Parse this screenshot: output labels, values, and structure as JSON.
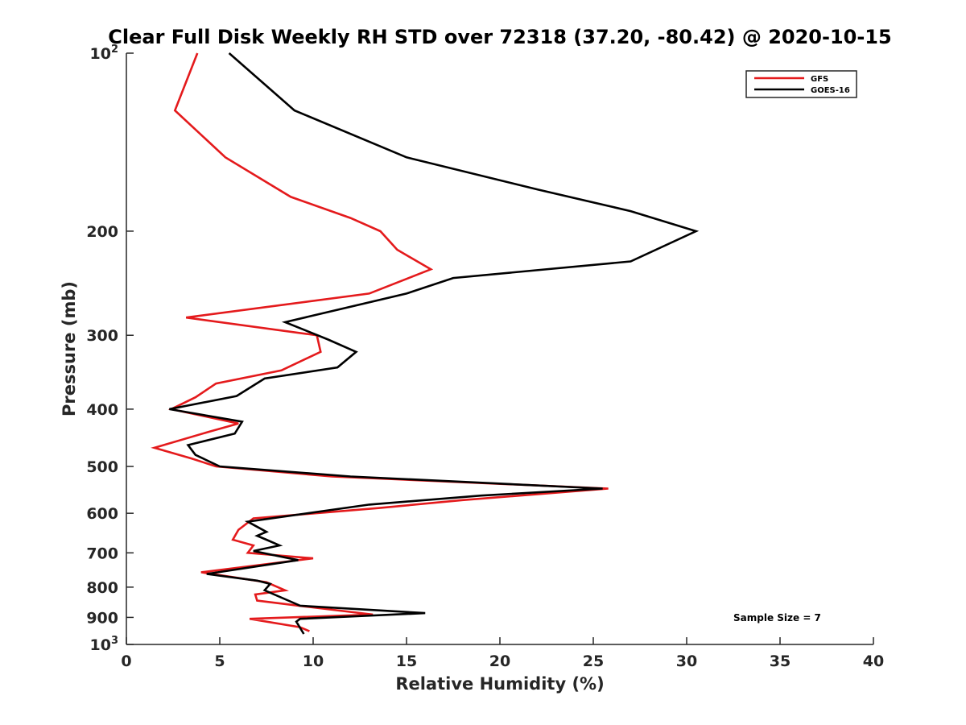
{
  "chart_data": {
    "type": "line",
    "title": "Clear Full Disk Weekly RH STD over 72318 (37.20, -80.42) @ 2020-10-15",
    "xlabel": "Relative Humidity (%)",
    "ylabel": "Pressure (mb)",
    "xlim": [
      0,
      40
    ],
    "ylim": [
      100,
      1000
    ],
    "y_scale": "log",
    "y_reversed": true,
    "grid": false,
    "legend_position": "top-right",
    "annotation": "Sample Size = 7",
    "x_ticks": [
      "0",
      "5",
      "10",
      "15",
      "20",
      "25",
      "30",
      "35",
      "40"
    ],
    "y_ticks": [
      {
        "value": 100,
        "base": "10",
        "sup": "2"
      },
      {
        "value": 200,
        "base": "200",
        "sup": ""
      },
      {
        "value": 300,
        "base": "300",
        "sup": ""
      },
      {
        "value": 400,
        "base": "400",
        "sup": ""
      },
      {
        "value": 500,
        "base": "500",
        "sup": ""
      },
      {
        "value": 600,
        "base": "600",
        "sup": ""
      },
      {
        "value": 700,
        "base": "700",
        "sup": ""
      },
      {
        "value": 800,
        "base": "800",
        "sup": ""
      },
      {
        "value": 900,
        "base": "900",
        "sup": ""
      },
      {
        "value": 1000,
        "base": "10",
        "sup": "3"
      }
    ],
    "series": [
      {
        "name": "GFS",
        "color": "#e41a1c",
        "points": [
          [
            3.8,
            100
          ],
          [
            2.6,
            125
          ],
          [
            5.3,
            150
          ],
          [
            8.8,
            175
          ],
          [
            12.0,
            190
          ],
          [
            13.6,
            200
          ],
          [
            14.5,
            215
          ],
          [
            16.3,
            232
          ],
          [
            13.0,
            255
          ],
          [
            3.2,
            280
          ],
          [
            10.2,
            300
          ],
          [
            10.4,
            320
          ],
          [
            8.3,
            344
          ],
          [
            4.8,
            362
          ],
          [
            3.7,
            382
          ],
          [
            2.4,
            400
          ],
          [
            6.0,
            423
          ],
          [
            4.4,
            437
          ],
          [
            1.5,
            465
          ],
          [
            3.5,
            485
          ],
          [
            4.8,
            500
          ],
          [
            11.0,
            520
          ],
          [
            25.8,
            545
          ],
          [
            18.0,
            570
          ],
          [
            13.5,
            588
          ],
          [
            6.8,
            612
          ],
          [
            6.0,
            640
          ],
          [
            5.7,
            665
          ],
          [
            6.8,
            680
          ],
          [
            6.5,
            700
          ],
          [
            10.0,
            715
          ],
          [
            4.0,
            755
          ],
          [
            7.5,
            785
          ],
          [
            8.5,
            810
          ],
          [
            6.9,
            823
          ],
          [
            7.0,
            843
          ],
          [
            9.5,
            862
          ],
          [
            13.2,
            890
          ],
          [
            6.6,
            905
          ],
          [
            9.3,
            935
          ],
          [
            9.8,
            950
          ]
        ]
      },
      {
        "name": "GOES-16",
        "color": "#000000",
        "points": [
          [
            5.5,
            100
          ],
          [
            9.0,
            125
          ],
          [
            15.0,
            150
          ],
          [
            22.0,
            170
          ],
          [
            27.0,
            185
          ],
          [
            30.5,
            200
          ],
          [
            27.0,
            225
          ],
          [
            17.5,
            240
          ],
          [
            15.0,
            255
          ],
          [
            8.5,
            285
          ],
          [
            10.8,
            305
          ],
          [
            12.3,
            320
          ],
          [
            11.3,
            340
          ],
          [
            7.4,
            355
          ],
          [
            5.9,
            380
          ],
          [
            2.3,
            400
          ],
          [
            6.2,
            420
          ],
          [
            5.8,
            440
          ],
          [
            3.3,
            460
          ],
          [
            3.7,
            478
          ],
          [
            5.0,
            500
          ],
          [
            12.0,
            520
          ],
          [
            25.5,
            545
          ],
          [
            19.0,
            560
          ],
          [
            13.0,
            580
          ],
          [
            6.5,
            620
          ],
          [
            6.9,
            630
          ],
          [
            7.5,
            645
          ],
          [
            7.0,
            655
          ],
          [
            7.5,
            665
          ],
          [
            8.2,
            680
          ],
          [
            6.8,
            695
          ],
          [
            9.2,
            720
          ],
          [
            4.3,
            760
          ],
          [
            7.0,
            780
          ],
          [
            7.7,
            790
          ],
          [
            7.4,
            810
          ],
          [
            9.3,
            860
          ],
          [
            16.0,
            885
          ],
          [
            9.3,
            905
          ],
          [
            9.1,
            915
          ],
          [
            9.5,
            960
          ]
        ]
      }
    ]
  }
}
